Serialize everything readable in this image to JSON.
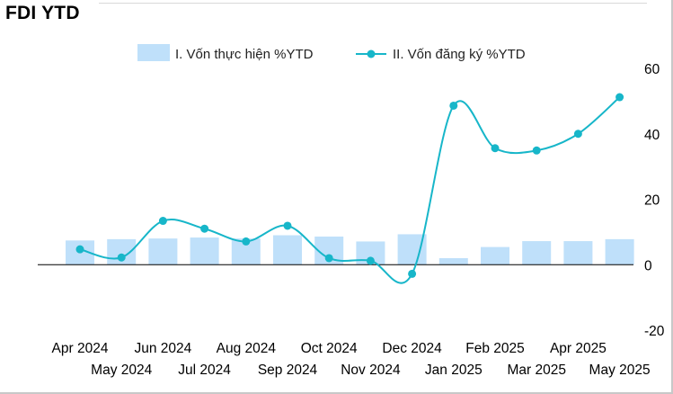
{
  "title": "FDI YTD",
  "chart_data": {
    "type": "bar+line",
    "categories": [
      "Apr 2024",
      "May 2024",
      "Jun 2024",
      "Jul 2024",
      "Aug 2024",
      "Sep 2024",
      "Oct 2024",
      "Nov 2024",
      "Dec 2024",
      "Jan 2025",
      "Feb 2025",
      "Mar 2025",
      "Apr 2025",
      "May 2025"
    ],
    "series": [
      {
        "name": "I. Vốn thực hiện %YTD",
        "type": "bar",
        "color": "#bfe0fa",
        "values": [
          7.4,
          7.8,
          8.0,
          8.3,
          8.0,
          9.0,
          8.6,
          7.1,
          9.3,
          2.0,
          5.4,
          7.2,
          7.2,
          7.8
        ]
      },
      {
        "name": "II. Vốn đăng ký %YTD",
        "type": "line",
        "color": "#17b6c9",
        "values": [
          4.7,
          2.2,
          13.4,
          11.0,
          7.1,
          11.9,
          2.0,
          1.2,
          -2.8,
          48.6,
          35.6,
          34.9,
          40.0,
          51.2
        ]
      }
    ],
    "yaxis": {
      "side": "right",
      "ylim": [
        -20,
        60
      ],
      "ticks": [
        60,
        40,
        20,
        0,
        -20
      ]
    },
    "legend_position": "top-center",
    "grid": false
  }
}
